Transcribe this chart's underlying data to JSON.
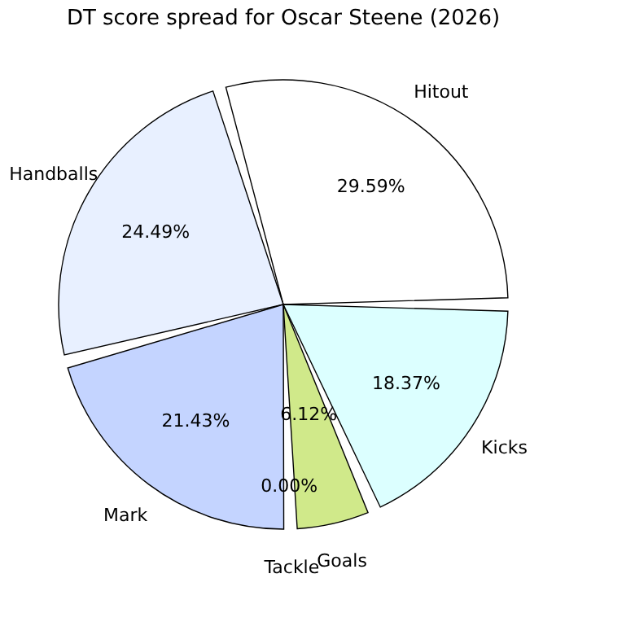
{
  "chart_data": {
    "type": "pie",
    "title": "DT score spread for Oscar Steene (2026)",
    "categories": [
      "Hitout",
      "Handballs",
      "Mark",
      "Tackle",
      "Goals",
      "Kicks"
    ],
    "values": [
      29.59,
      24.49,
      21.43,
      0.0,
      6.12,
      18.37
    ],
    "colors": [
      "#ffffff",
      "#e8f0ff",
      "#c4d4ff",
      "#f0e0c0",
      "#d0e98a",
      "#dcffff"
    ],
    "value_labels": [
      "29.59%",
      "24.49%",
      "21.43%",
      "0.00%",
      "6.12%",
      "18.37%"
    ],
    "legend": false
  }
}
